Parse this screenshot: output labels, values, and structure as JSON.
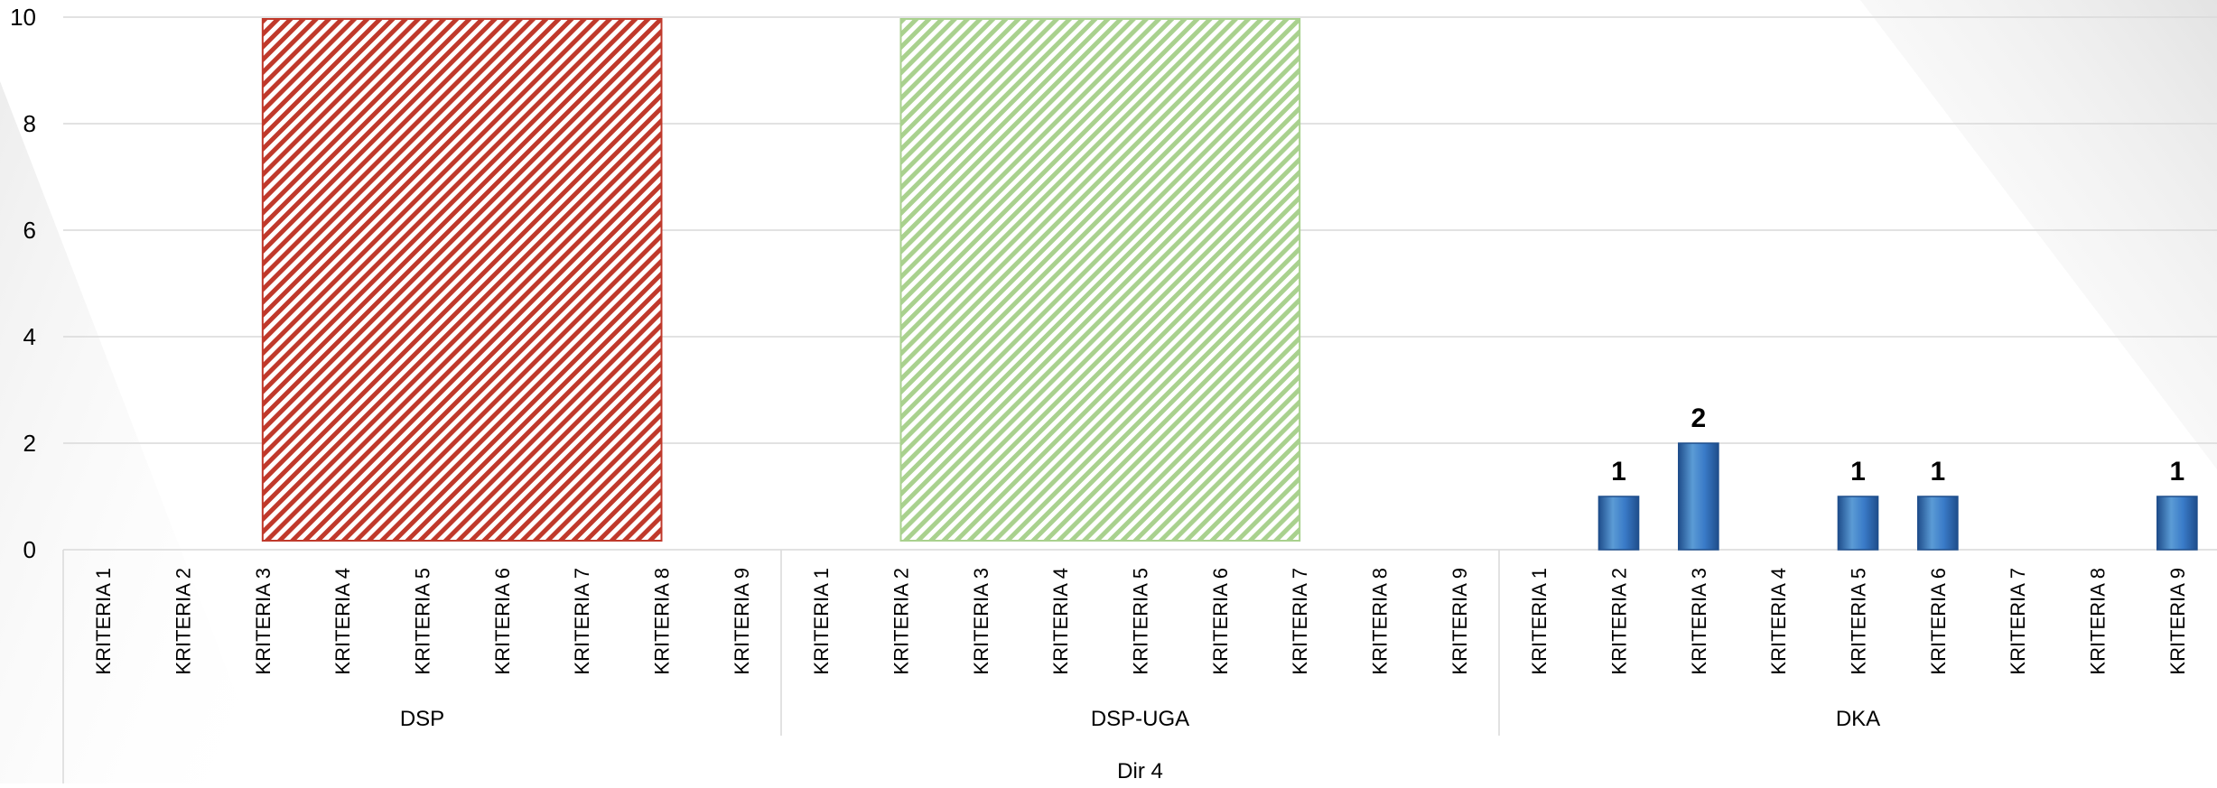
{
  "chart_data": {
    "type": "bar",
    "ylim": [
      0,
      10
    ],
    "y_ticks": [
      0,
      2,
      4,
      6,
      8,
      10
    ],
    "grid": true,
    "outer_group_label": "Dir 4",
    "groups": [
      {
        "name": "DSP",
        "categories": [
          "KRITERIA 1",
          "KRITERIA 2",
          "KRITERIA 3",
          "KRITERIA 4",
          "KRITERIA 5",
          "KRITERIA 6",
          "KRITERIA 7",
          "KRITERIA 8",
          "KRITERIA 9"
        ],
        "values": [
          0,
          0,
          0,
          0,
          0,
          0,
          0,
          0,
          0
        ],
        "highlight": {
          "from": "KRITERIA 3",
          "to": "KRITERIA 7",
          "value": 10,
          "style": "hatched",
          "color": "#c0392b"
        }
      },
      {
        "name": "DSP-UGA",
        "categories": [
          "KRITERIA 1",
          "KRITERIA 2",
          "KRITERIA 3",
          "KRITERIA 4",
          "KRITERIA 5",
          "KRITERIA 6",
          "KRITERIA 7",
          "KRITERIA 8",
          "KRITERIA 9"
        ],
        "values": [
          0,
          0,
          0,
          0,
          0,
          0,
          0,
          0,
          0
        ],
        "highlight": {
          "from": "KRITERIA 2",
          "to": "KRITERIA 6",
          "value": 10,
          "style": "hatched",
          "color": "#a9d18e"
        }
      },
      {
        "name": "DKA",
        "categories": [
          "KRITERIA 1",
          "KRITERIA 2",
          "KRITERIA 3",
          "KRITERIA 4",
          "KRITERIA 5",
          "KRITERIA 6",
          "KRITERIA 7",
          "KRITERIA 8",
          "KRITERIA 9"
        ],
        "values": [
          0,
          1,
          2,
          0,
          1,
          1,
          0,
          0,
          1
        ],
        "data_labels": [
          "",
          "1",
          "2",
          "",
          "1",
          "1",
          "",
          "",
          "1"
        ]
      }
    ],
    "colors": {
      "bar": "#2e6db4",
      "bar_light": "#5b9bd5",
      "bar_dark": "#1f4e8c",
      "gridline": "#d9d9d9",
      "axis_text": "#000000"
    }
  }
}
